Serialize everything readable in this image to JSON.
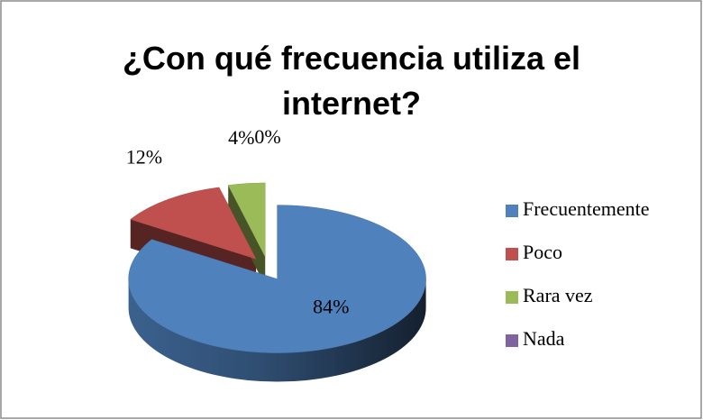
{
  "chart_data": {
    "type": "pie",
    "title": "¿Con qué frecuencia utiliza el internet?",
    "categories": [
      "Frecuentemente",
      "Poco",
      "Rara vez",
      "Nada"
    ],
    "values": [
      84,
      12,
      4,
      0
    ],
    "value_labels": [
      "84%",
      "12%",
      "4%",
      "0%"
    ],
    "colors": [
      "#4f81bd",
      "#c0504d",
      "#9bbb59",
      "#8064a2"
    ],
    "legend": "right"
  }
}
